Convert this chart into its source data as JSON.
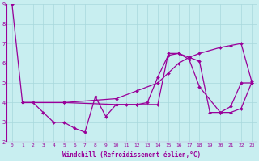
{
  "xlabel": "Windchill (Refroidissement éolien,°C)",
  "bg_color": "#c8eef0",
  "grid_color": "#a8d8dc",
  "line_color": "#990099",
  "xlim": [
    -0.5,
    23.5
  ],
  "ylim": [
    2,
    9
  ],
  "xticks": [
    0,
    1,
    2,
    3,
    4,
    5,
    6,
    7,
    8,
    9,
    10,
    11,
    12,
    13,
    14,
    15,
    16,
    17,
    18,
    19,
    20,
    21,
    22,
    23
  ],
  "yticks": [
    2,
    3,
    4,
    5,
    6,
    7,
    8,
    9
  ],
  "line1_x": [
    0,
    1,
    2,
    3,
    4,
    5,
    6,
    7,
    8,
    9,
    10,
    11,
    12,
    13,
    14,
    15,
    16,
    17,
    18,
    19,
    20,
    21,
    22,
    23
  ],
  "line1_y": [
    9.0,
    4.0,
    4.0,
    3.5,
    3.0,
    3.0,
    2.7,
    2.5,
    4.3,
    3.3,
    3.9,
    3.9,
    3.9,
    4.0,
    5.3,
    6.4,
    6.5,
    6.3,
    6.1,
    3.5,
    3.5,
    3.8,
    5.0,
    5.0
  ],
  "line2_x": [
    1,
    5,
    10,
    12,
    14,
    15,
    16,
    17,
    18,
    20,
    21,
    22,
    23
  ],
  "line2_y": [
    4.0,
    4.0,
    4.2,
    4.6,
    5.0,
    5.5,
    6.0,
    6.3,
    6.5,
    6.8,
    6.9,
    7.0,
    5.1
  ],
  "line3_x": [
    1,
    5,
    10,
    12,
    14,
    15,
    16,
    17,
    18,
    20,
    21,
    22,
    23
  ],
  "line3_y": [
    4.0,
    4.0,
    3.9,
    3.9,
    3.9,
    6.5,
    6.5,
    6.2,
    4.8,
    3.5,
    3.5,
    3.7,
    5.0
  ],
  "marker": "D",
  "markersize": 2.0,
  "linewidth": 0.9,
  "tick_fontsize": 4.5,
  "xlabel_fontsize": 5.5
}
